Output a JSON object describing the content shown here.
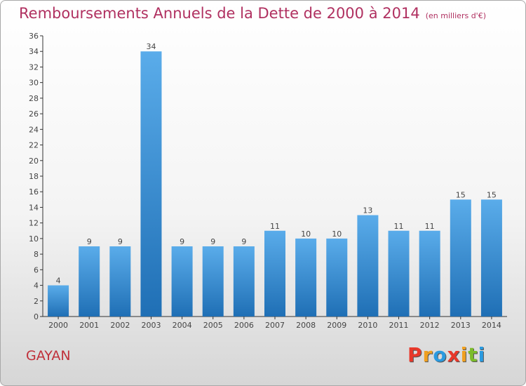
{
  "header": {
    "title": "Remboursements Annuels de la Dette de 2000 à 2014",
    "unit": "(en milliers d'€)"
  },
  "footer": {
    "city": "GAYAN",
    "logo_letters": [
      "P",
      "r",
      "o",
      "x",
      "i",
      "t",
      "i"
    ]
  },
  "colors": {
    "title": "#b03060",
    "bar_light": "#5aacea",
    "bar_dark": "#1f6fb5",
    "logo": [
      "#e8382a",
      "#f0a020",
      "#2a9ae0",
      "#e8382a",
      "#f0a020",
      "#7cbc2a",
      "#2a9ae0"
    ]
  },
  "chart_data": {
    "type": "bar",
    "categories": [
      "2000",
      "2001",
      "2002",
      "2003",
      "2004",
      "2005",
      "2006",
      "2007",
      "2008",
      "2009",
      "2010",
      "2011",
      "2012",
      "2013",
      "2014"
    ],
    "values": [
      4,
      9,
      9,
      34,
      9,
      9,
      9,
      11,
      10,
      10,
      13,
      11,
      11,
      15,
      15
    ],
    "ylim": [
      0,
      36
    ],
    "yticks": [
      0,
      2,
      4,
      6,
      8,
      10,
      12,
      14,
      16,
      18,
      20,
      22,
      24,
      26,
      28,
      30,
      32,
      34,
      36
    ],
    "grid": false,
    "data_labels": true
  }
}
